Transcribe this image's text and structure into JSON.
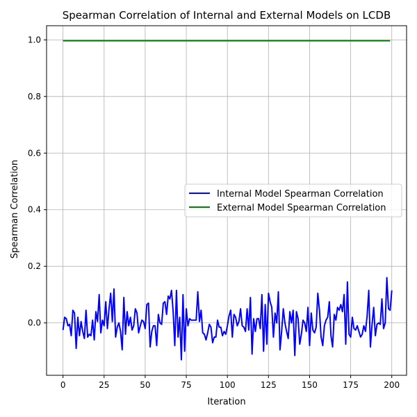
{
  "chart_data": {
    "type": "line",
    "title": "Spearman Correlation of Internal and External Models on LCDB",
    "xlabel": "Iteration",
    "ylabel": "Spearman Correlation",
    "xlim": [
      -10,
      209
    ],
    "ylim": [
      -0.185,
      1.05
    ],
    "xticks": [
      0,
      25,
      50,
      75,
      100,
      125,
      150,
      175,
      200
    ],
    "yticks": [
      0.0,
      0.2,
      0.4,
      0.6,
      0.8,
      1.0
    ],
    "ytick_labels": [
      "0.0",
      "0.2",
      "0.4",
      "0.6",
      "0.8",
      "1.0"
    ],
    "grid": true,
    "legend_position": "center-right",
    "series": [
      {
        "name": "Internal Model Spearman Correlation",
        "color": "#0000ff",
        "x_start": 0,
        "x_step": 1,
        "values": [
          -0.025,
          0.02,
          0.015,
          -0.01,
          -0.005,
          -0.045,
          0.045,
          0.035,
          -0.09,
          0.02,
          -0.045,
          0.005,
          -0.03,
          -0.055,
          0.045,
          -0.05,
          -0.04,
          -0.045,
          0.01,
          -0.06,
          0.04,
          0.005,
          0.1,
          -0.035,
          0.01,
          -0.01,
          0.075,
          -0.02,
          0.05,
          0.105,
          0.005,
          0.12,
          -0.05,
          -0.015,
          0.0,
          -0.03,
          -0.095,
          0.09,
          -0.04,
          0.04,
          -0.01,
          0.02,
          -0.025,
          -0.01,
          0.05,
          0.035,
          -0.035,
          -0.01,
          0.01,
          0.005,
          -0.02,
          0.065,
          0.07,
          -0.085,
          -0.03,
          -0.01,
          -0.01,
          -0.08,
          0.03,
          0.0,
          -0.005,
          0.07,
          0.075,
          0.03,
          0.095,
          0.085,
          0.115,
          0.04,
          -0.08,
          0.115,
          -0.05,
          0.02,
          -0.13,
          0.1,
          -0.1,
          0.05,
          -0.01,
          0.015,
          0.01,
          0.01,
          0.01,
          0.01,
          0.11,
          0.005,
          0.045,
          -0.035,
          -0.04,
          -0.06,
          -0.035,
          -0.005,
          -0.015,
          -0.07,
          -0.05,
          -0.05,
          0.01,
          -0.015,
          -0.015,
          -0.045,
          -0.03,
          -0.04,
          -0.01,
          0.025,
          0.045,
          -0.05,
          0.03,
          0.02,
          -0.01,
          0.005,
          0.05,
          -0.01,
          -0.015,
          -0.03,
          0.05,
          -0.025,
          0.09,
          -0.11,
          0.015,
          -0.03,
          0.015,
          0.015,
          -0.02,
          0.1,
          -0.1,
          0.065,
          -0.075,
          0.105,
          0.075,
          0.055,
          -0.05,
          0.035,
          0.0,
          0.11,
          -0.095,
          -0.03,
          0.05,
          0.0,
          -0.03,
          -0.055,
          0.04,
          0.0,
          0.045,
          -0.115,
          0.04,
          0.015,
          -0.075,
          -0.04,
          0.01,
          0.0,
          -0.03,
          0.055,
          -0.08,
          0.035,
          -0.025,
          -0.035,
          -0.015,
          0.105,
          0.045,
          -0.05,
          -0.08,
          -0.01,
          0.01,
          0.02,
          0.075,
          -0.045,
          -0.085,
          0.03,
          0.01,
          0.055,
          0.045,
          0.065,
          0.04,
          0.1,
          -0.075,
          0.145,
          -0.04,
          -0.05,
          0.02,
          -0.02,
          -0.025,
          -0.01,
          -0.03,
          -0.05,
          -0.04,
          -0.01,
          -0.03,
          0.025,
          0.115,
          -0.085,
          -0.005,
          0.055,
          -0.045,
          -0.005,
          0.0,
          -0.005,
          0.085,
          -0.02,
          0.0,
          0.16,
          0.05,
          0.045,
          0.115
        ]
      },
      {
        "name": "External Model Spearman Correlation",
        "color": "#008000",
        "x_start": 0,
        "x_step": 1,
        "constant_value": 0.997,
        "count": 200
      }
    ]
  }
}
